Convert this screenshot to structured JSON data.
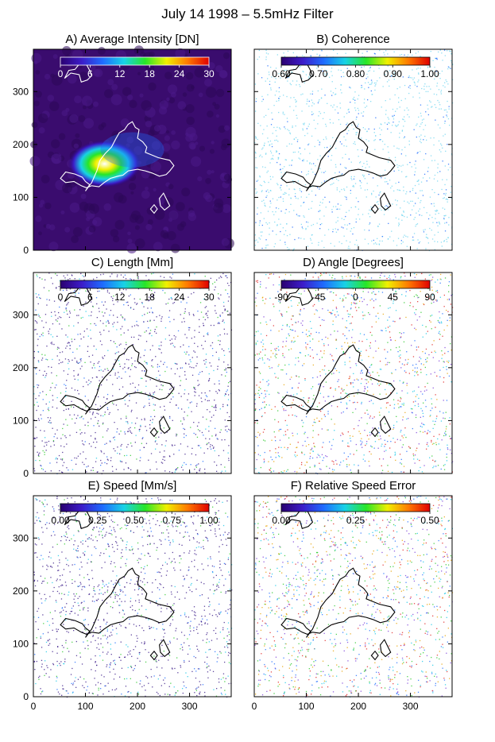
{
  "figure_title": "July 14 1998 – 5.5mHz Filter",
  "chart_data": [
    {
      "type": "heatmap",
      "panel": "A",
      "title": "A) Average Intensity [DN]",
      "background": "dark",
      "colorbar_ticks": [
        "0",
        "6",
        "12",
        "18",
        "24",
        "30"
      ],
      "colorbar_range": [
        0,
        30
      ],
      "xlim": [
        0,
        380
      ],
      "ylim": [
        0,
        380
      ],
      "x_ticks": [
        "0",
        "100",
        "200",
        "300"
      ],
      "y_ticks": [
        "0",
        "100",
        "200",
        "300"
      ],
      "contour_color": "#ffffff"
    },
    {
      "type": "heatmap",
      "panel": "B",
      "title": "B) Coherence",
      "background": "light",
      "colorbar_ticks": [
        "0.60",
        "0.70",
        "0.80",
        "0.90",
        "1.00"
      ],
      "colorbar_range": [
        0.6,
        1.0
      ],
      "xlim": [
        0,
        380
      ],
      "ylim": [
        0,
        380
      ],
      "x_ticks": [
        "0",
        "100",
        "200",
        "300"
      ],
      "y_ticks": [],
      "contour_color": "#000000"
    },
    {
      "type": "heatmap",
      "panel": "C",
      "title": "C) Length [Mm]",
      "background": "light",
      "colorbar_ticks": [
        "0",
        "6",
        "12",
        "18",
        "24",
        "30"
      ],
      "colorbar_range": [
        0,
        30
      ],
      "xlim": [
        0,
        380
      ],
      "ylim": [
        0,
        380
      ],
      "x_ticks": [
        "0",
        "100",
        "200",
        "300"
      ],
      "y_ticks": [
        "0",
        "100",
        "200",
        "300"
      ],
      "contour_color": "#000000"
    },
    {
      "type": "heatmap",
      "panel": "D",
      "title": "D) Angle [Degrees]",
      "background": "light",
      "colorbar_ticks": [
        "-90",
        "-45",
        "0",
        "45",
        "90"
      ],
      "colorbar_range": [
        -90,
        90
      ],
      "xlim": [
        0,
        380
      ],
      "ylim": [
        0,
        380
      ],
      "x_ticks": [
        "0",
        "100",
        "200",
        "300"
      ],
      "y_ticks": [],
      "contour_color": "#000000"
    },
    {
      "type": "heatmap",
      "panel": "E",
      "title": "E) Speed [Mm/s]",
      "background": "light",
      "colorbar_ticks": [
        "0.00",
        "0.25",
        "0.50",
        "0.75",
        "1.00"
      ],
      "colorbar_range": [
        0,
        1
      ],
      "xlim": [
        0,
        380
      ],
      "ylim": [
        0,
        380
      ],
      "x_ticks": [
        "0",
        "100",
        "200",
        "300"
      ],
      "y_ticks": [
        "0",
        "100",
        "200",
        "300"
      ],
      "contour_color": "#000000"
    },
    {
      "type": "heatmap",
      "panel": "F",
      "title": "F) Relative Speed Error",
      "background": "light",
      "colorbar_ticks": [
        "0.00",
        "0.25",
        "0.50"
      ],
      "colorbar_range": [
        0,
        0.5
      ],
      "xlim": [
        0,
        380
      ],
      "ylim": [
        0,
        380
      ],
      "x_ticks": [
        "0",
        "100",
        "200",
        "300"
      ],
      "y_ticks": [],
      "contour_color": "#000000"
    }
  ],
  "rainbow": [
    "#2a0070",
    "#3c1cc8",
    "#1e6cff",
    "#18d2e6",
    "#28e628",
    "#f0f000",
    "#ff7800",
    "#e00000"
  ],
  "dot_palette": [
    "#1e6cff",
    "#18c8e6",
    "#28c828",
    "#e6a000",
    "#e02020",
    "#7a3cd8"
  ]
}
